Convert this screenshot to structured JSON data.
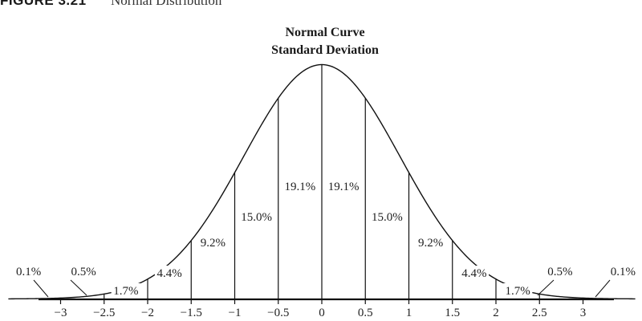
{
  "caption": {
    "label": "FIGURE 3.21",
    "text": "Normal Distribution"
  },
  "chart_data": {
    "type": "area",
    "title": "Normal Curve",
    "subtitle": "Standard Deviation",
    "xlabel": "",
    "ylabel": "",
    "xlim": [
      -3.5,
      3.5
    ],
    "grid": false,
    "x_ticks": [
      -3,
      -2.5,
      -2,
      -1.5,
      -1,
      -0.5,
      0,
      0.5,
      1,
      1.5,
      2,
      2.5,
      3
    ],
    "x_tick_labels": [
      "−3",
      "−2.5",
      "−2",
      "−1.5",
      "−1",
      "−0.5",
      "0",
      "0.5",
      "1",
      "1.5",
      "2",
      "2.5",
      "3"
    ],
    "boundaries": [
      -2.5,
      -2,
      -1.5,
      -1,
      -0.5,
      0,
      0.5,
      1,
      1.5,
      2,
      2.5
    ],
    "segments": [
      {
        "from": -3,
        "to": -2.5,
        "label": "0.5%"
      },
      {
        "from": -2.5,
        "to": -2,
        "label": "1.7%"
      },
      {
        "from": -2,
        "to": -1.5,
        "label": "4.4%"
      },
      {
        "from": -1.5,
        "to": -1,
        "label": "9.2%"
      },
      {
        "from": -1,
        "to": -0.5,
        "label": "15.0%"
      },
      {
        "from": -0.5,
        "to": 0,
        "label": "19.1%"
      },
      {
        "from": 0,
        "to": 0.5,
        "label": "19.1%"
      },
      {
        "from": 0.5,
        "to": 1,
        "label": "15.0%"
      },
      {
        "from": 1,
        "to": 1.5,
        "label": "9.2%"
      },
      {
        "from": 1.5,
        "to": 2,
        "label": "4.4%"
      },
      {
        "from": 2,
        "to": 2.5,
        "label": "1.7%"
      },
      {
        "from": 2.5,
        "to": 3,
        "label": "0.5%"
      }
    ],
    "tails": [
      {
        "side": "left",
        "label": "0.1%"
      },
      {
        "side": "right",
        "label": "0.1%"
      }
    ]
  }
}
